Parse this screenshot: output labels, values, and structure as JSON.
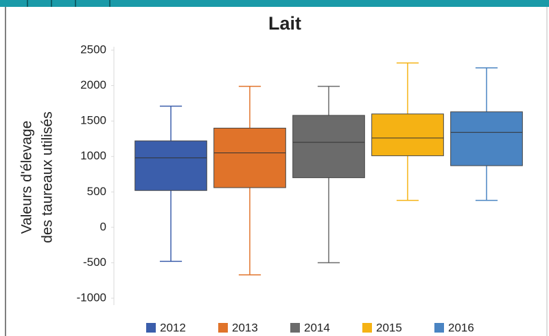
{
  "chart_data": {
    "type": "box",
    "title": "Lait",
    "ylabel": [
      "Valeurs d'élevage",
      "des taureaux utilisés"
    ],
    "ylim": [
      -1000,
      2500
    ],
    "yticks": [
      -1000,
      -500,
      0,
      500,
      1000,
      1500,
      2000,
      2500
    ],
    "series": [
      {
        "name": "2012",
        "color": "#3b5eab",
        "min": -480,
        "q1": 520,
        "median": 980,
        "q3": 1220,
        "max": 1710
      },
      {
        "name": "2013",
        "color": "#e0732a",
        "min": -670,
        "q1": 560,
        "median": 1050,
        "q3": 1400,
        "max": 1990
      },
      {
        "name": "2014",
        "color": "#6b6b6b",
        "min": -500,
        "q1": 700,
        "median": 1200,
        "q3": 1580,
        "max": 1990
      },
      {
        "name": "2015",
        "color": "#f5b214",
        "min": 380,
        "q1": 1010,
        "median": 1260,
        "q3": 1600,
        "max": 2320
      },
      {
        "name": "2016",
        "color": "#4a84c2",
        "min": 380,
        "q1": 870,
        "median": 1340,
        "q3": 1630,
        "max": 2250
      }
    ]
  }
}
